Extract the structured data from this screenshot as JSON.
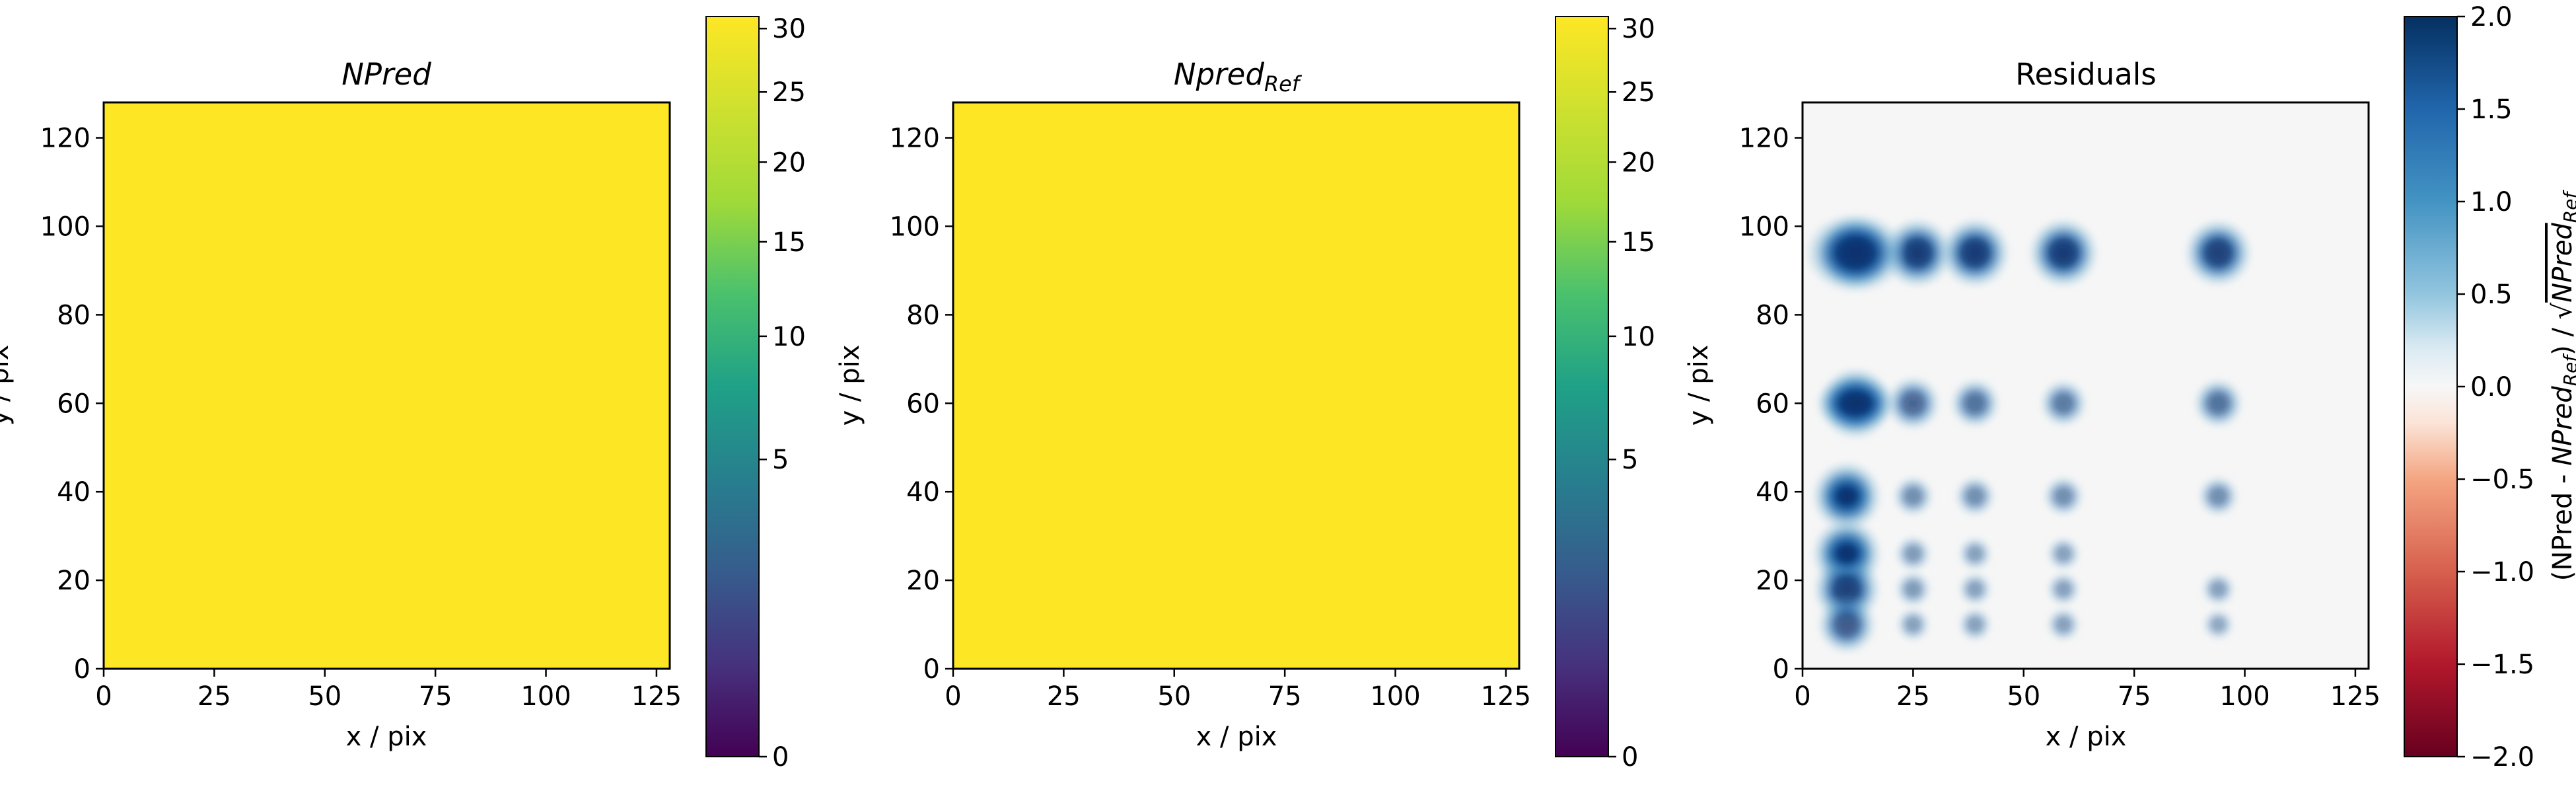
{
  "chart_data": [
    {
      "type": "heatmap",
      "title": "NPred",
      "title_italic": true,
      "xlabel": "x / pix",
      "ylabel": "y / pix",
      "xlim": [
        0,
        128
      ],
      "ylim": [
        0,
        128
      ],
      "xticks": [
        0,
        25,
        50,
        75,
        100,
        125
      ],
      "yticks": [
        0,
        20,
        40,
        60,
        80,
        100,
        120
      ],
      "fill_value": 30,
      "colorbar": {
        "colormap": "viridis",
        "scale": "sqrt",
        "range": [
          0,
          31
        ],
        "ticks": [
          0,
          5,
          10,
          15,
          20,
          25,
          30
        ],
        "label": ""
      }
    },
    {
      "type": "heatmap",
      "title": "Npred",
      "title_subscript": "Ref",
      "title_italic": true,
      "xlabel": "x / pix",
      "ylabel": "y / pix",
      "xlim": [
        0,
        128
      ],
      "ylim": [
        0,
        128
      ],
      "xticks": [
        0,
        25,
        50,
        75,
        100,
        125
      ],
      "yticks": [
        0,
        20,
        40,
        60,
        80,
        100,
        120
      ],
      "fill_value": 30,
      "colorbar": {
        "colormap": "viridis",
        "scale": "sqrt",
        "range": [
          0,
          31
        ],
        "ticks": [
          0,
          5,
          10,
          15,
          20,
          25,
          30
        ],
        "label": ""
      }
    },
    {
      "type": "heatmap",
      "title": "Residuals",
      "title_italic": false,
      "xlabel": "x / pix",
      "ylabel": "y / pix",
      "xlim": [
        0,
        128
      ],
      "ylim": [
        0,
        128
      ],
      "xticks": [
        0,
        25,
        50,
        75,
        100,
        125
      ],
      "yticks": [
        0,
        20,
        40,
        60,
        80,
        100,
        120
      ],
      "background_value": 0.05,
      "sources": [
        {
          "x": 12,
          "y": 94,
          "value": 2.0
        },
        {
          "x": 26,
          "y": 94,
          "value": 1.9
        },
        {
          "x": 39,
          "y": 94,
          "value": 1.9
        },
        {
          "x": 59,
          "y": 94,
          "value": 1.9
        },
        {
          "x": 94,
          "y": 94,
          "value": 1.8
        },
        {
          "x": 12,
          "y": 60,
          "value": 2.0
        },
        {
          "x": 25,
          "y": 60,
          "value": 1.2
        },
        {
          "x": 39,
          "y": 60,
          "value": 1.0
        },
        {
          "x": 59,
          "y": 60,
          "value": 0.9
        },
        {
          "x": 94,
          "y": 60,
          "value": 1.0
        },
        {
          "x": 10,
          "y": 39,
          "value": 1.9
        },
        {
          "x": 25,
          "y": 39,
          "value": 0.6
        },
        {
          "x": 39,
          "y": 39,
          "value": 0.6
        },
        {
          "x": 59,
          "y": 39,
          "value": 0.6
        },
        {
          "x": 94,
          "y": 39,
          "value": 0.6
        },
        {
          "x": 10,
          "y": 26,
          "value": 1.9
        },
        {
          "x": 25,
          "y": 26,
          "value": 0.4
        },
        {
          "x": 39,
          "y": 26,
          "value": 0.3
        },
        {
          "x": 59,
          "y": 26,
          "value": 0.3
        },
        {
          "x": 10,
          "y": 18,
          "value": 1.8
        },
        {
          "x": 25,
          "y": 18,
          "value": 0.4
        },
        {
          "x": 39,
          "y": 18,
          "value": 0.3
        },
        {
          "x": 59,
          "y": 18,
          "value": 0.3
        },
        {
          "x": 94,
          "y": 18,
          "value": 0.3
        },
        {
          "x": 10,
          "y": 10,
          "value": 1.4
        },
        {
          "x": 25,
          "y": 10,
          "value": 0.3
        },
        {
          "x": 39,
          "y": 10,
          "value": 0.3
        },
        {
          "x": 59,
          "y": 10,
          "value": 0.3
        },
        {
          "x": 94,
          "y": 10,
          "value": 0.2
        }
      ],
      "colorbar": {
        "colormap": "RdBu",
        "scale": "linear",
        "range": [
          -2.0,
          2.0
        ],
        "ticks": [
          -2.0,
          -1.5,
          -1.0,
          -0.5,
          0.0,
          0.5,
          1.0,
          1.5,
          2.0
        ],
        "tick_labels": [
          "−2.0",
          "−1.5",
          "−1.0",
          "−0.5",
          "0.0",
          "0.5",
          "1.0",
          "1.5",
          "2.0"
        ],
        "label_parts": {
          "lead": "(NPred - ",
          "npred": "NPred",
          "ref_sub": "Ref",
          "mid": ") / ",
          "sqrt": "√",
          "sqrt_npred": "NPred",
          "sqrt_ref_sub": "Ref"
        }
      }
    }
  ],
  "colors": {
    "viridis_top": "#fde725",
    "viridis_bottom": "#440154",
    "residual_background": "#f6f6f6"
  }
}
